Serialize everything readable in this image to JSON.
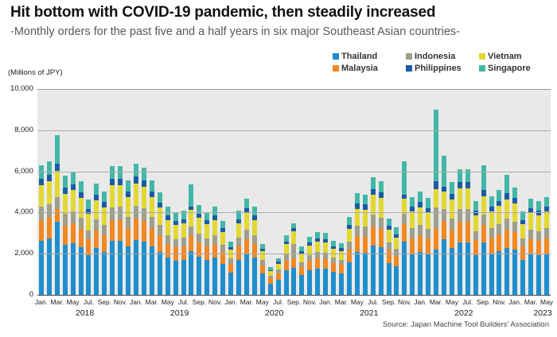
{
  "header": {
    "title": "Hit bottom with COVID-19 pandemic, then steadily increased",
    "subtitle": "-Monthly orders for the past five and a half years in six major Southeast Asian countries-"
  },
  "axis": {
    "y_label": "(Millions of JPY)",
    "y_ticks": [
      "0",
      "2,000",
      "4,000",
      "6,000",
      "8,000",
      "10,000"
    ],
    "source": "Source: Japan Machine Tool Builders' Association"
  },
  "chart_data": {
    "type": "bar",
    "stacked": true,
    "title": "Hit bottom with COVID-19 pandemic, then steadily increased",
    "subtitle": "-Monthly orders for the past five and a half years in six major Southeast Asian countries-",
    "ylabel": "(Millions of JPY)",
    "ylim": [
      0,
      10000
    ],
    "grid": true,
    "legend_position": "top-right",
    "plot_background": "#e9e9e9",
    "grid_color": "#ababab",
    "month_tick_labels": [
      "Jan.",
      "Mar.",
      "May",
      "Jul.",
      "Sep.",
      "Nov."
    ],
    "years": [
      {
        "label": "2018",
        "count": 12
      },
      {
        "label": "2019",
        "count": 12
      },
      {
        "label": "2020",
        "count": 12
      },
      {
        "label": "2021",
        "count": 12
      },
      {
        "label": "2022",
        "count": 12
      },
      {
        "label": "2023",
        "count": 5
      }
    ],
    "stack_order": [
      "Thailand",
      "Malaysia",
      "Indonesia",
      "Vietnam",
      "Philippines",
      "Singapore"
    ],
    "legend_order": [
      "Thailand",
      "Indonesia",
      "Vietnam",
      "Malaysia",
      "Philippines",
      "Singapore"
    ],
    "series": [
      {
        "name": "Thailand",
        "color": "#1f8ecd",
        "values": [
          2650,
          2740,
          3560,
          2440,
          2520,
          2330,
          1950,
          2280,
          2110,
          2640,
          2645,
          2350,
          2690,
          2605,
          2350,
          2100,
          1805,
          1680,
          1720,
          2150,
          1850,
          1700,
          1805,
          1510,
          1090,
          1720,
          1975,
          1805,
          1050,
          550,
          755,
          1220,
          1300,
          985,
          1195,
          1280,
          1270,
          1115,
          1060,
          1595,
          2080,
          2060,
          2410,
          2330,
          1570,
          1380,
          2600,
          2000,
          2110,
          1980,
          2200,
          2700,
          2305,
          2575,
          2575,
          1925,
          2550,
          2015,
          2140,
          2300,
          2205,
          1705,
          1965,
          1925,
          2005
        ]
      },
      {
        "name": "Malaysia",
        "color": "#f28822",
        "values": [
          1010,
          1040,
          640,
          930,
          960,
          890,
          745,
          870,
          805,
          1005,
          1010,
          895,
          1025,
          990,
          895,
          800,
          690,
          640,
          655,
          750,
          705,
          650,
          690,
          575,
          415,
          655,
          750,
          690,
          400,
          250,
          290,
          465,
          500,
          375,
          455,
          490,
          485,
          425,
          405,
          610,
          790,
          785,
          920,
          890,
          600,
          525,
          850,
          765,
          805,
          755,
          1030,
          900,
          880,
          980,
          980,
          735,
          850,
          770,
          815,
          880,
          840,
          650,
          750,
          730,
          765
        ]
      },
      {
        "name": "Indonesia",
        "color": "#9f9f8b",
        "values": [
          630,
          650,
          560,
          580,
          600,
          555,
          465,
          540,
          505,
          630,
          630,
          560,
          640,
          620,
          560,
          500,
          430,
          400,
          410,
          450,
          440,
          405,
          430,
          360,
          260,
          410,
          470,
          430,
          250,
          120,
          180,
          290,
          700,
          235,
          285,
          305,
          305,
          265,
          250,
          380,
          495,
          490,
          575,
          555,
          375,
          330,
          500,
          475,
          505,
          470,
          1030,
          600,
          550,
          615,
          615,
          455,
          530,
          480,
          510,
          550,
          525,
          405,
          470,
          460,
          475
        ]
      },
      {
        "name": "Vietnam",
        "color": "#e3d832",
        "values": [
          1070,
          1110,
          1300,
          985,
          1020,
          945,
          790,
          920,
          855,
          1065,
          1070,
          950,
          1090,
          1055,
          950,
          850,
          730,
          680,
          700,
          800,
          750,
          690,
          730,
          615,
          445,
          700,
          800,
          730,
          425,
          230,
          305,
          490,
          600,
          400,
          485,
          520,
          515,
          450,
          430,
          645,
          840,
          830,
          975,
          945,
          635,
          560,
          750,
          815,
          855,
          805,
          900,
          850,
          935,
          1040,
          1040,
          780,
          880,
          815,
          870,
          940,
          890,
          690,
          795,
          780,
          810
        ]
      },
      {
        "name": "Philippines",
        "color": "#1a5ba6",
        "values": [
          320,
          330,
          320,
          290,
          300,
          275,
          235,
          270,
          250,
          315,
          315,
          280,
          320,
          310,
          280,
          250,
          215,
          200,
          205,
          150,
          220,
          200,
          215,
          180,
          130,
          205,
          235,
          215,
          125,
          60,
          90,
          145,
          150,
          120,
          145,
          150,
          150,
          130,
          125,
          190,
          250,
          245,
          285,
          275,
          185,
          165,
          200,
          240,
          250,
          235,
          390,
          220,
          270,
          305,
          305,
          225,
          310,
          240,
          255,
          280,
          265,
          205,
          230,
          225,
          240
        ]
      },
      {
        "name": "Singapore",
        "color": "#43b7a7",
        "values": [
          640,
          650,
          1400,
          575,
          600,
          555,
          465,
          540,
          505,
          625,
          630,
          565,
          635,
          620,
          565,
          500,
          430,
          400,
          410,
          1100,
          435,
          405,
          430,
          360,
          260,
          410,
          470,
          430,
          250,
          140,
          180,
          290,
          250,
          235,
          285,
          305,
          305,
          265,
          250,
          380,
          495,
          490,
          575,
          555,
          375,
          330,
          1600,
          475,
          505,
          475,
          3480,
          1500,
          550,
          615,
          615,
          460,
          1200,
          480,
          510,
          920,
          525,
          405,
          470,
          460,
          475
        ]
      }
    ]
  }
}
